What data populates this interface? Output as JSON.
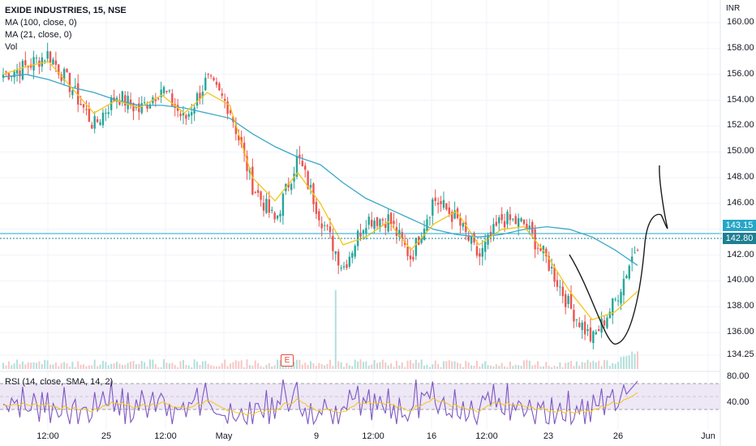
{
  "legend": {
    "title": "EXIDE INDUSTRIES, 15, NSE",
    "ma100": "MA (100, close, 0)",
    "ma21": "MA (21, close, 0)",
    "vol": "Vol",
    "rsi": "RSI (14, close, SMA, 14, 2)"
  },
  "axis": {
    "currency": "INR",
    "price_ticks": [
      "160.00",
      "158.00",
      "156.00",
      "154.00",
      "152.00",
      "150.00",
      "148.00",
      "146.00",
      "144.00",
      "142.00",
      "140.00",
      "138.00",
      "136.00",
      "134.25"
    ],
    "rsi_ticks": [
      "80.00",
      "40.00"
    ],
    "x_ticks": [
      "12:00",
      "25",
      "12:00",
      "May",
      "9",
      "12:00",
      "16",
      "12:00",
      "23",
      "26",
      "Jun"
    ]
  },
  "price_tags": {
    "upper": "143.15",
    "lower": "142.80"
  },
  "earnings_marker": "E",
  "colors": {
    "up": "#26a69a",
    "down": "#ef5350",
    "ma100": "#3aa7c9",
    "ma21": "#f5c518",
    "rsi": "#7e57c2",
    "rsi_band": "#ede7f6",
    "volume_up": "#b2dfdb",
    "volume_down": "#f7c7c5"
  },
  "chart_data": {
    "type": "candlestick",
    "series": [
      {
        "name": "MA (100, close, 0)",
        "values": [
          155.8,
          156.0,
          155.6,
          155.0,
          154.6,
          154.0,
          153.6,
          153.6,
          153.4,
          153.0,
          152.6,
          151.4,
          150.4,
          149.6,
          149.0,
          147.6,
          146.4,
          145.6,
          144.8,
          144.0,
          143.6,
          143.4,
          143.6,
          144.0,
          144.2,
          144.0,
          143.4,
          142.4,
          141.2
        ]
      },
      {
        "name": "MA (21, close, 0)",
        "values": [
          156.0,
          156.6,
          157.0,
          155.0,
          153.0,
          154.0,
          153.4,
          154.4,
          153.0,
          154.6,
          153.6,
          148.0,
          146.2,
          148.4,
          146.0,
          142.8,
          143.4,
          144.6,
          142.4,
          144.4,
          145.4,
          142.8,
          144.0,
          144.2,
          142.0,
          139.2,
          137.0,
          137.6,
          139.2
        ]
      }
    ],
    "close": [
      156.0,
      156.6,
      157.6,
      155.0,
      152.0,
      154.4,
      153.2,
      155.0,
      152.4,
      155.6,
      153.4,
      147.4,
      144.6,
      149.6,
      145.0,
      141.0,
      144.8,
      144.8,
      141.8,
      146.4,
      144.8,
      141.8,
      144.8,
      144.4,
      141.6,
      138.0,
      135.4,
      138.4,
      143.0
    ],
    "x_labels": [
      "12:00",
      "25",
      "12:00",
      "May",
      "9",
      "12:00",
      "16",
      "12:00",
      "23",
      "26",
      "Jun"
    ],
    "ylim": [
      134.25,
      160.0
    ],
    "rsi": {
      "levels": [
        70,
        30
      ],
      "range": [
        20,
        90
      ]
    },
    "annotation": "hand-drawn U-shaped curve with upward arrow near 26"
  }
}
